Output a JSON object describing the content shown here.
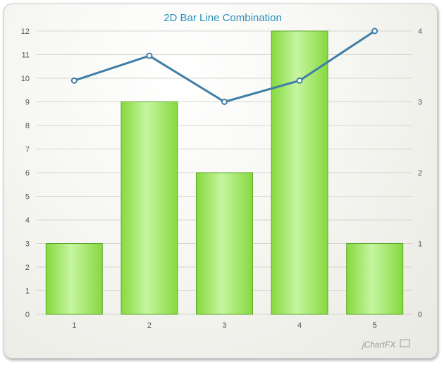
{
  "chart_data": {
    "type": "bar",
    "title": "2D Bar Line Combination",
    "categories": [
      "1",
      "2",
      "3",
      "4",
      "5"
    ],
    "series": [
      {
        "type": "bar",
        "axis": "left",
        "values": [
          3,
          9,
          6,
          12,
          3
        ]
      },
      {
        "type": "line",
        "axis": "right",
        "values": [
          3.3,
          3.65,
          3.0,
          3.3,
          4.0
        ]
      }
    ],
    "ylim_left": [
      0,
      12
    ],
    "yticks_left": [
      0,
      1,
      2,
      3,
      4,
      5,
      6,
      7,
      8,
      9,
      10,
      11,
      12
    ],
    "ylim_right": [
      0,
      4
    ],
    "yticks_right": [
      0,
      1,
      2,
      3,
      4
    ],
    "grid": true,
    "colors": {
      "bar": "#8fe04a",
      "bar_edge": "#5ea62a",
      "line": "#3f7fa6",
      "marker_fill": "#ffffff",
      "title": "#2a8fb8"
    }
  },
  "branding": {
    "logo": "jChartFX"
  }
}
